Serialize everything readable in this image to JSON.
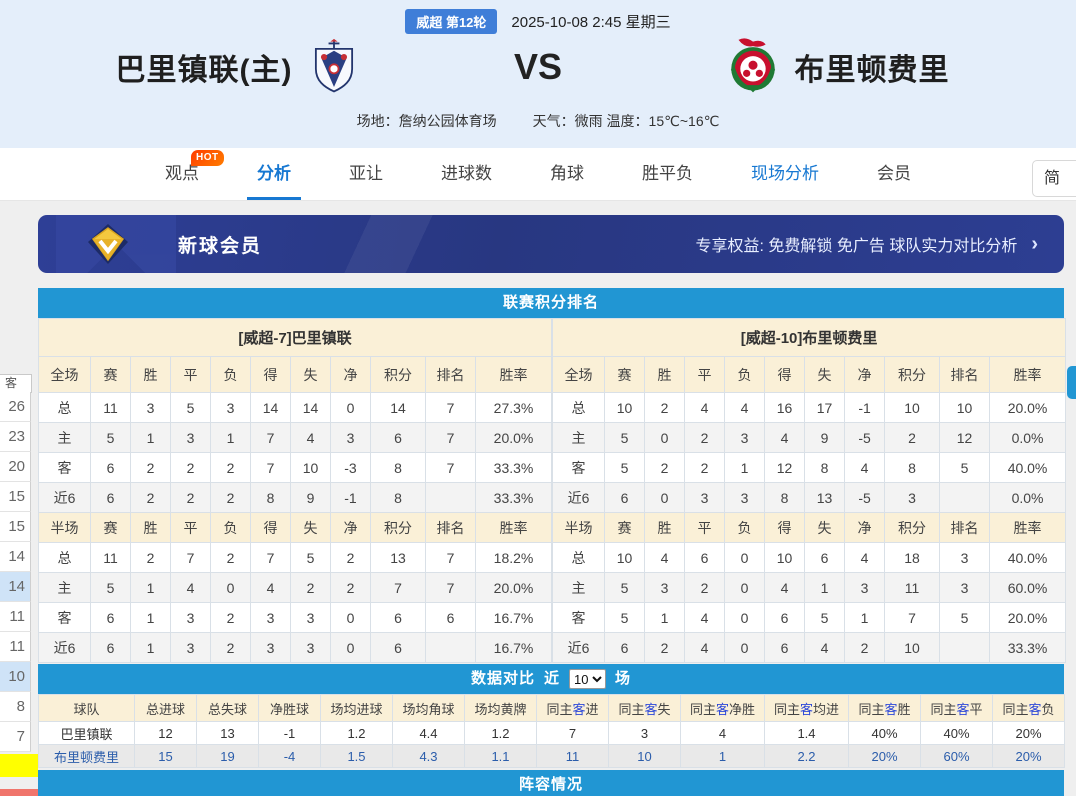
{
  "header": {
    "round_badge": "威超 第12轮",
    "datetime": "2025-10-08 2:45 星期三",
    "home_team": "巴里镇联(主)",
    "vs_label": "VS",
    "away_team": "布里顿费里",
    "venue": "场地：詹纳公园体育场",
    "weather": "天气：微雨 温度：15℃~16℃"
  },
  "nav": {
    "items": [
      {
        "key": "guandian",
        "label": "观点",
        "badge": "HOT"
      },
      {
        "key": "fenxi",
        "label": "分析",
        "active": true
      },
      {
        "key": "yarang",
        "label": "亚让"
      },
      {
        "key": "jinqiushu",
        "label": "进球数"
      },
      {
        "key": "jiaoqiu",
        "label": "角球"
      },
      {
        "key": "shengpingfu",
        "label": "胜平负"
      },
      {
        "key": "xianchangfenxi",
        "label": "现场分析",
        "highlight": true
      },
      {
        "key": "huiyuan",
        "label": "会员"
      }
    ],
    "lang_button": "简"
  },
  "vip_banner": {
    "title": "新球会员",
    "benefits": "专享权益: 免费解锁 免广告 球队实力对比分析",
    "arrow": "›"
  },
  "standings": {
    "title": "联赛积分排名",
    "stat_columns": [
      "赛",
      "胜",
      "平",
      "负",
      "得",
      "失",
      "净",
      "积分",
      "排名",
      "胜率"
    ],
    "sections": [
      {
        "team_header": "[威超-7]巴里镇联",
        "full_label": "全场",
        "half_label": "半场",
        "full_rows": [
          {
            "label": "总",
            "type": "total",
            "stats": [
              "11",
              "3",
              "5",
              "3",
              "14",
              "14",
              "0"
            ],
            "pts": "14",
            "rank": "7",
            "rate": "27.3%"
          },
          {
            "label": "主",
            "type": "home",
            "stats": [
              "5",
              "1",
              "3",
              "1",
              "7",
              "4",
              "3"
            ],
            "pts": "6",
            "rank": "7",
            "rate": "20.0%"
          },
          {
            "label": "客",
            "type": "away",
            "stats": [
              "6",
              "2",
              "2",
              "2",
              "7",
              "10",
              "-3"
            ],
            "pts": "8",
            "rank": "7",
            "rate": "33.3%"
          },
          {
            "label": "近6",
            "type": "recent",
            "stats": [
              "6",
              "2",
              "2",
              "2",
              "8",
              "9",
              "-1"
            ],
            "pts": "8",
            "rank": "",
            "rate": "33.3%"
          }
        ],
        "half_rows": [
          {
            "label": "总",
            "type": "total",
            "stats": [
              "11",
              "2",
              "7",
              "2",
              "7",
              "5",
              "2"
            ],
            "pts": "13",
            "rank": "7",
            "rate": "18.2%"
          },
          {
            "label": "主",
            "type": "home",
            "stats": [
              "5",
              "1",
              "4",
              "0",
              "4",
              "2",
              "2"
            ],
            "pts": "7",
            "rank": "7",
            "rate": "20.0%"
          },
          {
            "label": "客",
            "type": "away",
            "stats": [
              "6",
              "1",
              "3",
              "2",
              "3",
              "3",
              "0"
            ],
            "pts": "6",
            "rank": "6",
            "rate": "16.7%"
          },
          {
            "label": "近6",
            "type": "recent",
            "stats": [
              "6",
              "1",
              "3",
              "2",
              "3",
              "3",
              "0"
            ],
            "pts": "6",
            "rank": "",
            "rate": "16.7%"
          }
        ]
      },
      {
        "team_header": "[威超-10]布里顿费里",
        "full_label": "全场",
        "half_label": "半场",
        "full_rows": [
          {
            "label": "总",
            "type": "total",
            "stats": [
              "10",
              "2",
              "4",
              "4",
              "16",
              "17",
              "-1"
            ],
            "pts": "10",
            "rank": "10",
            "rate": "20.0%"
          },
          {
            "label": "主",
            "type": "home",
            "stats": [
              "5",
              "0",
              "2",
              "3",
              "4",
              "9",
              "-5"
            ],
            "pts": "2",
            "rank": "12",
            "rate": "0.0%"
          },
          {
            "label": "客",
            "type": "away",
            "stats": [
              "5",
              "2",
              "2",
              "1",
              "12",
              "8",
              "4"
            ],
            "pts": "8",
            "rank": "5",
            "rate": "40.0%"
          },
          {
            "label": "近6",
            "type": "recent",
            "stats": [
              "6",
              "0",
              "3",
              "3",
              "8",
              "13",
              "-5"
            ],
            "pts": "3",
            "rank": "",
            "rate": "0.0%"
          }
        ],
        "half_rows": [
          {
            "label": "总",
            "type": "total",
            "stats": [
              "10",
              "4",
              "6",
              "0",
              "10",
              "6",
              "4"
            ],
            "pts": "18",
            "rank": "3",
            "rate": "40.0%"
          },
          {
            "label": "主",
            "type": "home",
            "stats": [
              "5",
              "3",
              "2",
              "0",
              "4",
              "1",
              "3"
            ],
            "pts": "11",
            "rank": "3",
            "rate": "60.0%"
          },
          {
            "label": "客",
            "type": "away",
            "stats": [
              "5",
              "1",
              "4",
              "0",
              "6",
              "5",
              "1"
            ],
            "pts": "7",
            "rank": "5",
            "rate": "20.0%"
          },
          {
            "label": "近6",
            "type": "recent",
            "stats": [
              "6",
              "2",
              "4",
              "0",
              "6",
              "4",
              "2"
            ],
            "pts": "10",
            "rank": "",
            "rate": "33.3%"
          }
        ]
      }
    ]
  },
  "comparison": {
    "title_prefix": "数据对比",
    "near_label": "近",
    "games_options": [
      "10"
    ],
    "selected_games": "10",
    "suffix": "场",
    "columns": [
      "球队",
      "总进球",
      "总失球",
      "净胜球",
      "场均进球",
      "场均角球",
      "场均黄牌",
      "同主客进",
      "同主客失",
      "同主客净胜",
      "同主客均进",
      "同主客胜",
      "同主客平",
      "同主客负"
    ],
    "rows": [
      {
        "team": "巴里镇联",
        "away_style": false,
        "values": [
          "12",
          "13",
          "-1",
          "1.2",
          "4.4",
          "1.2",
          "7",
          "3",
          "4",
          "1.4",
          "40%",
          "40%",
          "20%"
        ]
      },
      {
        "team": "布里顿费里",
        "away_style": true,
        "values": [
          "15",
          "19",
          "-4",
          "1.5",
          "4.3",
          "1.1",
          "11",
          "10",
          "1",
          "2.2",
          "20%",
          "60%",
          "20%"
        ]
      }
    ]
  },
  "lineup": {
    "title": "阵容情况"
  },
  "left_strip": {
    "col_header": "客",
    "values": [
      "26",
      "23",
      "20",
      "15",
      "15",
      "14",
      "14",
      "11",
      "11",
      "10",
      "8",
      "7"
    ],
    "highlighted_indexes": [
      6,
      9
    ]
  },
  "icons": {
    "home_logo": "barry-town-crest",
    "away_logo": "briton-ferry-crest",
    "vip_gem": "gold-diamond"
  }
}
